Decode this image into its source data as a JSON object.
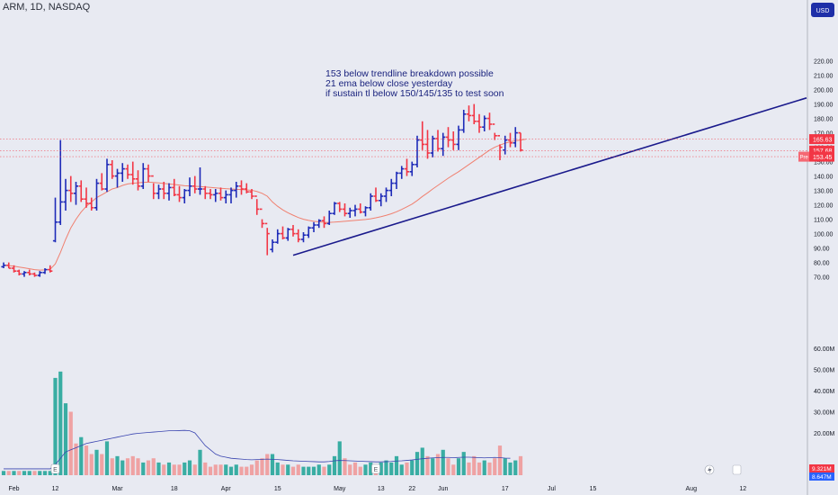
{
  "symbol_title": "ARM, 1D, NASDAQ",
  "currency_badge": "USD",
  "annotation_lines": [
    "153 below trendline breakdown possible",
    "21 ema below close yesterday",
    "if sustain tl below 150/145/135 to test soon"
  ],
  "price_tags": [
    {
      "value": "165.63",
      "price": 165.63,
      "color": "#f23645",
      "prefix": ""
    },
    {
      "value": "157.68",
      "price": 157.68,
      "color": "#f23645",
      "prefix": ""
    },
    {
      "value": "153.45",
      "price": 153.45,
      "color": "#f23645",
      "prefix": "Pre"
    }
  ],
  "volume_tags": [
    {
      "value": "9.321M",
      "color": "#f23645"
    },
    {
      "value": "8.647M",
      "color": "#2962ff"
    }
  ],
  "earnings_marker": "E",
  "colors": {
    "background": "#e8eaf2",
    "up": "#1e2bb8",
    "down": "#f23645",
    "ema": "#f08070",
    "trendline": "#1a1a8c",
    "vol_up": "#26a69a",
    "vol_down": "#ef9a9a",
    "vol_ma": "#3a45b0",
    "axis_text": "#131722"
  },
  "chart_data": {
    "type": "ohlc",
    "series_symbol": "ARM",
    "interval": "1D",
    "exchange": "NASDAQ",
    "y_axis_ticks": [
      70,
      80,
      90,
      100,
      110,
      120,
      130,
      140,
      150,
      160,
      170,
      180,
      190,
      200,
      210,
      220
    ],
    "y_axis_labels": [
      "70.00",
      "80.00",
      "90.00",
      "100.00",
      "110.00",
      "120.00",
      "130.00",
      "140.00",
      "150.00",
      "160.00",
      "170.00",
      "180.00",
      "190.00",
      "200.00",
      "210.00",
      "220.00"
    ],
    "volume_axis_labels": [
      "20.00M",
      "30.00M",
      "40.00M",
      "50.00M",
      "60.00M"
    ],
    "volume_axis_ticks": [
      20,
      30,
      40,
      50,
      60
    ],
    "x_axis_labels": [
      {
        "label": "Feb",
        "index": 2
      },
      {
        "label": "12",
        "index": 10
      },
      {
        "label": "Mar",
        "index": 22
      },
      {
        "label": "18",
        "index": 33
      },
      {
        "label": "Apr",
        "index": 43
      },
      {
        "label": "15",
        "index": 53
      },
      {
        "label": "May",
        "index": 65
      },
      {
        "label": "13",
        "index": 73
      },
      {
        "label": "22",
        "index": 79
      },
      {
        "label": "Jun",
        "index": 85
      },
      {
        "label": "17",
        "index": 97
      },
      {
        "label": "Jul",
        "index": 106
      },
      {
        "label": "15",
        "index": 114
      },
      {
        "label": "Aug",
        "index": 133
      },
      {
        "label": "12",
        "index": 143
      }
    ],
    "earnings_indices": [
      10,
      72
    ],
    "trendline": {
      "start_index": 56,
      "start_price": 85,
      "end_index": 136,
      "end_price": 173
    },
    "bars": [
      [
        77,
        80,
        76,
        78
      ],
      [
        78,
        80,
        76,
        76
      ],
      [
        76,
        78,
        73,
        74
      ],
      [
        74,
        75,
        71,
        72
      ],
      [
        72,
        74,
        70,
        73
      ],
      [
        73,
        75,
        71,
        72
      ],
      [
        72,
        73,
        70,
        71
      ],
      [
        71,
        74,
        70,
        73
      ],
      [
        73,
        76,
        72,
        75
      ],
      [
        75,
        78,
        73,
        74
      ],
      [
        95,
        125,
        94,
        108
      ],
      [
        108,
        165,
        106,
        122
      ],
      [
        122,
        138,
        116,
        130
      ],
      [
        130,
        140,
        122,
        128
      ],
      [
        128,
        136,
        120,
        133
      ],
      [
        133,
        137,
        122,
        124
      ],
      [
        124,
        132,
        118,
        121
      ],
      [
        121,
        125,
        116,
        118
      ],
      [
        118,
        138,
        116,
        135
      ],
      [
        135,
        142,
        130,
        131
      ],
      [
        131,
        152,
        129,
        148
      ],
      [
        148,
        151,
        138,
        140
      ],
      [
        140,
        145,
        132,
        142
      ],
      [
        142,
        149,
        136,
        145
      ],
      [
        145,
        148,
        138,
        141
      ],
      [
        141,
        150,
        134,
        138
      ],
      [
        138,
        144,
        130,
        133
      ],
      [
        133,
        149,
        131,
        145
      ],
      [
        145,
        148,
        136,
        140
      ],
      [
        140,
        135,
        124,
        128
      ],
      [
        128,
        134,
        124,
        131
      ],
      [
        131,
        136,
        124,
        128
      ],
      [
        128,
        135,
        123,
        132
      ],
      [
        132,
        138,
        126,
        127
      ],
      [
        127,
        133,
        122,
        125
      ],
      [
        125,
        131,
        121,
        130
      ],
      [
        130,
        139,
        126,
        133
      ],
      [
        133,
        140,
        128,
        131
      ],
      [
        131,
        146,
        127,
        131
      ],
      [
        131,
        133,
        124,
        128
      ],
      [
        128,
        131,
        124,
        127
      ],
      [
        127,
        131,
        122,
        128
      ],
      [
        128,
        132,
        123,
        125
      ],
      [
        125,
        130,
        121,
        127
      ],
      [
        127,
        132,
        121,
        130
      ],
      [
        130,
        136,
        125,
        133
      ],
      [
        133,
        137,
        127,
        131
      ],
      [
        131,
        135,
        128,
        129
      ],
      [
        129,
        131,
        124,
        126
      ],
      [
        126,
        124,
        113,
        117
      ],
      [
        117,
        110,
        104,
        107
      ],
      [
        107,
        104,
        85,
        100
      ],
      [
        89,
        96,
        87,
        94
      ],
      [
        94,
        103,
        93,
        100
      ],
      [
        100,
        105,
        96,
        97
      ],
      [
        97,
        104,
        95,
        103
      ],
      [
        103,
        106,
        98,
        100
      ],
      [
        100,
        103,
        94,
        96
      ],
      [
        96,
        101,
        94,
        99
      ],
      [
        99,
        105,
        97,
        104
      ],
      [
        104,
        108,
        101,
        106
      ],
      [
        106,
        110,
        104,
        109
      ],
      [
        109,
        112,
        104,
        107
      ],
      [
        107,
        116,
        106,
        114
      ],
      [
        114,
        122,
        113,
        121
      ],
      [
        121,
        122,
        115,
        117
      ],
      [
        117,
        121,
        112,
        114
      ],
      [
        114,
        118,
        111,
        116
      ],
      [
        116,
        120,
        112,
        117
      ],
      [
        117,
        121,
        114,
        115
      ],
      [
        115,
        119,
        112,
        118
      ],
      [
        118,
        128,
        116,
        126
      ],
      [
        126,
        132,
        122,
        123
      ],
      [
        123,
        128,
        119,
        126
      ],
      [
        126,
        132,
        122,
        130
      ],
      [
        130,
        138,
        126,
        135
      ],
      [
        135,
        143,
        131,
        142
      ],
      [
        142,
        147,
        138,
        145
      ],
      [
        145,
        152,
        140,
        143
      ],
      [
        143,
        150,
        140,
        148
      ],
      [
        148,
        168,
        146,
        165
      ],
      [
        165,
        178,
        158,
        162
      ],
      [
        162,
        172,
        152,
        156
      ],
      [
        156,
        168,
        153,
        166
      ],
      [
        166,
        172,
        157,
        159
      ],
      [
        159,
        170,
        154,
        167
      ],
      [
        167,
        174,
        160,
        165
      ],
      [
        165,
        171,
        158,
        162
      ],
      [
        162,
        175,
        158,
        172
      ],
      [
        172,
        186,
        170,
        183
      ],
      [
        183,
        189,
        178,
        182
      ],
      [
        182,
        190,
        176,
        178
      ],
      [
        178,
        183,
        170,
        174
      ],
      [
        174,
        182,
        171,
        180
      ],
      [
        180,
        184,
        172,
        176
      ],
      [
        176,
        170,
        165,
        168
      ],
      [
        168,
        162,
        151,
        160
      ],
      [
        158,
        168,
        155,
        165
      ],
      [
        165,
        170,
        160,
        163
      ],
      [
        163,
        174,
        160,
        170
      ],
      [
        170,
        170,
        157,
        158
      ]
    ],
    "ema21": [
      78,
      77.8,
      77.4,
      76.8,
      76.2,
      75.6,
      75,
      74.7,
      74.8,
      75.2,
      79,
      87,
      96,
      104,
      110,
      115,
      119,
      122,
      125,
      127,
      129,
      131,
      132,
      133.5,
      134.5,
      135,
      135.3,
      135.6,
      135.8,
      135.5,
      135.2,
      134.8,
      134.5,
      134.1,
      133.7,
      133.3,
      133.1,
      132.9,
      132.7,
      132.4,
      132.1,
      131.8,
      131.5,
      131.2,
      131,
      130.8,
      130.6,
      130.4,
      130.1,
      129.3,
      128,
      126,
      122,
      119,
      116.5,
      114.5,
      112.8,
      111.2,
      110,
      109.2,
      108.6,
      108.2,
      107.9,
      107.8,
      108,
      108.3,
      108.6,
      108.9,
      109.2,
      109.5,
      109.8,
      110.3,
      111,
      111.8,
      112.7,
      113.8,
      115.2,
      116.8,
      118.6,
      120.5,
      123,
      125.8,
      128.3,
      131,
      133.5,
      136,
      138.5,
      140.8,
      143,
      145.5,
      148,
      150.5,
      153,
      155.5,
      158,
      160,
      161.5,
      162.8,
      163.8,
      164.5,
      165,
      165.5
    ],
    "volume": [
      [
        2,
        "u"
      ],
      [
        2,
        "d"
      ],
      [
        2,
        "u"
      ],
      [
        2,
        "d"
      ],
      [
        2,
        "u"
      ],
      [
        2,
        "u"
      ],
      [
        2,
        "d"
      ],
      [
        2,
        "u"
      ],
      [
        2,
        "u"
      ],
      [
        2,
        "u"
      ],
      [
        46,
        "u"
      ],
      [
        49,
        "u"
      ],
      [
        34,
        "u"
      ],
      [
        30,
        "d"
      ],
      [
        15,
        "d"
      ],
      [
        18,
        "u"
      ],
      [
        14,
        "d"
      ],
      [
        10,
        "d"
      ],
      [
        12,
        "u"
      ],
      [
        10,
        "d"
      ],
      [
        16,
        "u"
      ],
      [
        8,
        "d"
      ],
      [
        9,
        "u"
      ],
      [
        7,
        "u"
      ],
      [
        8,
        "d"
      ],
      [
        9,
        "d"
      ],
      [
        8,
        "d"
      ],
      [
        6,
        "u"
      ],
      [
        7,
        "d"
      ],
      [
        8,
        "d"
      ],
      [
        6,
        "u"
      ],
      [
        5,
        "d"
      ],
      [
        6,
        "u"
      ],
      [
        5,
        "d"
      ],
      [
        5,
        "d"
      ],
      [
        6,
        "u"
      ],
      [
        7,
        "u"
      ],
      [
        5,
        "d"
      ],
      [
        12,
        "u"
      ],
      [
        6,
        "d"
      ],
      [
        4,
        "d"
      ],
      [
        5,
        "d"
      ],
      [
        5,
        "d"
      ],
      [
        5,
        "u"
      ],
      [
        4,
        "u"
      ],
      [
        5,
        "u"
      ],
      [
        4,
        "d"
      ],
      [
        4,
        "d"
      ],
      [
        5,
        "d"
      ],
      [
        7,
        "d"
      ],
      [
        8,
        "d"
      ],
      [
        10,
        "d"
      ],
      [
        10,
        "u"
      ],
      [
        6,
        "u"
      ],
      [
        5,
        "d"
      ],
      [
        5,
        "u"
      ],
      [
        4,
        "d"
      ],
      [
        5,
        "d"
      ],
      [
        4,
        "u"
      ],
      [
        4,
        "u"
      ],
      [
        4,
        "u"
      ],
      [
        5,
        "u"
      ],
      [
        4,
        "d"
      ],
      [
        5,
        "u"
      ],
      [
        9,
        "u"
      ],
      [
        16,
        "u"
      ],
      [
        8,
        "d"
      ],
      [
        5,
        "d"
      ],
      [
        6,
        "d"
      ],
      [
        4,
        "d"
      ],
      [
        5,
        "u"
      ],
      [
        6,
        "u"
      ],
      [
        5,
        "d"
      ],
      [
        6,
        "u"
      ],
      [
        7,
        "u"
      ],
      [
        6,
        "u"
      ],
      [
        9,
        "u"
      ],
      [
        5,
        "u"
      ],
      [
        6,
        "d"
      ],
      [
        7,
        "u"
      ],
      [
        11,
        "u"
      ],
      [
        13,
        "u"
      ],
      [
        9,
        "d"
      ],
      [
        8,
        "u"
      ],
      [
        10,
        "d"
      ],
      [
        12,
        "u"
      ],
      [
        8,
        "d"
      ],
      [
        5,
        "d"
      ],
      [
        8,
        "u"
      ],
      [
        11,
        "u"
      ],
      [
        6,
        "d"
      ],
      [
        9,
        "d"
      ],
      [
        6,
        "d"
      ],
      [
        7,
        "u"
      ],
      [
        6,
        "d"
      ],
      [
        8,
        "d"
      ],
      [
        14,
        "d"
      ],
      [
        8,
        "u"
      ],
      [
        6,
        "u"
      ],
      [
        7,
        "u"
      ],
      [
        9,
        "d"
      ]
    ],
    "volume_ma": [
      3,
      3,
      3,
      3,
      3,
      3,
      3,
      3,
      3,
      3,
      5,
      8,
      11,
      12,
      13,
      14,
      15,
      15.5,
      16,
      16.5,
      17,
      17.5,
      18,
      18.5,
      19,
      19.5,
      19.8,
      20,
      20.2,
      20.4,
      20.6,
      20.8,
      21,
      21,
      21.1,
      21.2,
      21,
      20,
      17,
      14,
      12,
      10,
      9,
      8.5,
      8,
      7.8,
      7.6,
      7.4,
      7.3,
      7.4,
      7.5,
      7.6,
      7.5,
      7.4,
      7.2,
      7,
      6.8,
      6.7,
      6.6,
      6.5,
      6.4,
      6.3,
      6.3,
      6.5,
      6.8,
      7,
      6.9,
      6.8,
      6.7,
      6.6,
      6.5,
      6.4,
      6.3,
      6.3,
      6.4,
      6.5,
      6.7,
      6.8,
      7,
      7.2,
      7.5,
      7.8,
      8,
      8.2,
      8.3,
      8.4,
      8.4,
      8.3,
      8.4,
      8.5,
      8.5,
      8.4,
      8.3,
      8.2,
      8.3,
      8.4,
      8.3,
      8.1,
      8
    ]
  }
}
